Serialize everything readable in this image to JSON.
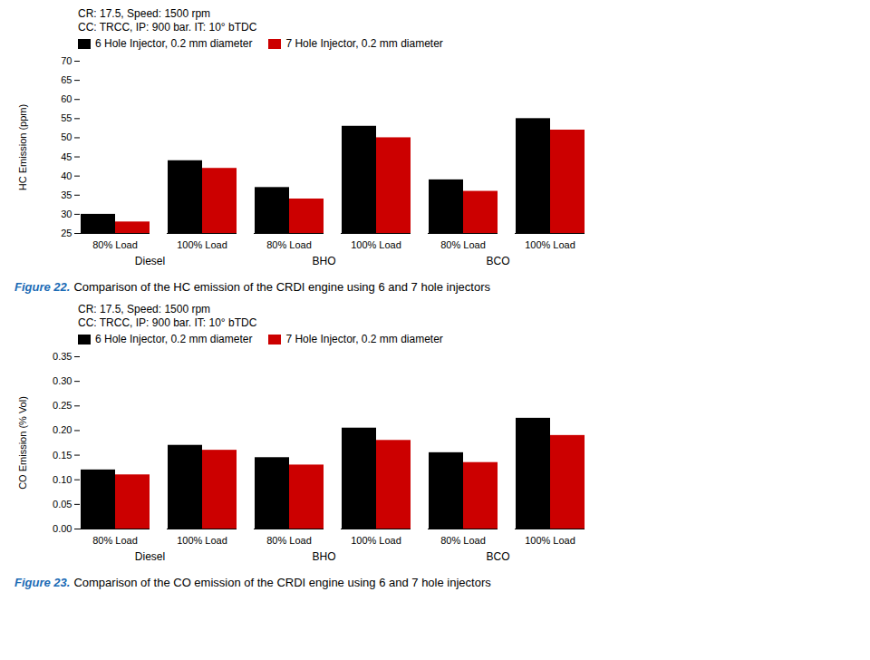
{
  "chart_data": [
    {
      "type": "bar",
      "annotations": [
        "CR: 17.5, Speed: 1500 rpm",
        "CC: TRCC, IP: 900 bar. IT: 10° bTDC"
      ],
      "ylabel": "HC Emission (ppm)",
      "categories": [
        "80% Load",
        "100% Load",
        "80% Load",
        "100% Load",
        "80% Load",
        "100% Load"
      ],
      "group_labels": [
        "Diesel",
        "BHO",
        "BCO"
      ],
      "series": [
        {
          "name": "6 Hole Injector, 0.2 mm diameter",
          "color": "#000000",
          "values": [
            30,
            44,
            37,
            53,
            39,
            55
          ]
        },
        {
          "name": "7 Hole Injector, 0.2 mm diameter",
          "color": "#cc0000",
          "values": [
            28,
            42,
            34,
            50,
            36,
            52
          ]
        }
      ],
      "ylim": [
        25,
        70
      ],
      "yticks": [
        25,
        30,
        35,
        40,
        45,
        50,
        55,
        60,
        65,
        70
      ],
      "grid": false,
      "legend": "upper left",
      "caption_label": "Figure 22.",
      "caption_label_color": "#1a6bb5",
      "caption": "Comparison of the HC emission of the CRDI engine using 6 and 7 hole injectors"
    },
    {
      "type": "bar",
      "annotations": [
        "CR: 17.5, Speed: 1500 rpm",
        "CC: TRCC, IP: 900 bar. IT: 10° bTDC"
      ],
      "ylabel": "CO Emission (% Vol)",
      "categories": [
        "80% Load",
        "100% Load",
        "80% Load",
        "100% Load",
        "80% Load",
        "100% Load"
      ],
      "group_labels": [
        "Diesel",
        "BHO",
        "BCO"
      ],
      "series": [
        {
          "name": "6 Hole Injector, 0.2 mm diameter",
          "color": "#000000",
          "values": [
            0.12,
            0.17,
            0.145,
            0.205,
            0.155,
            0.225
          ]
        },
        {
          "name": "7 Hole Injector, 0.2 mm diameter",
          "color": "#cc0000",
          "values": [
            0.11,
            0.16,
            0.13,
            0.18,
            0.135,
            0.19
          ]
        }
      ],
      "ylim": [
        0.0,
        0.35
      ],
      "yticks": [
        {
          "value": 0.0,
          "label": "0.00"
        },
        {
          "value": 0.05,
          "label": "0.05"
        },
        {
          "value": 0.1,
          "label": "0.10"
        },
        {
          "value": 0.15,
          "label": "0.15"
        },
        {
          "value": 0.2,
          "label": "0.20"
        },
        {
          "value": 0.25,
          "label": "0.25"
        },
        {
          "value": 0.3,
          "label": "0.30"
        },
        {
          "value": 0.35,
          "label": "0.35"
        }
      ],
      "grid": false,
      "legend": "upper left",
      "caption_label": "Figure 23.",
      "caption_label_color": "#1a6bb5",
      "caption": "Comparison of the CO emission of the CRDI engine using 6 and 7 hole injectors"
    }
  ]
}
